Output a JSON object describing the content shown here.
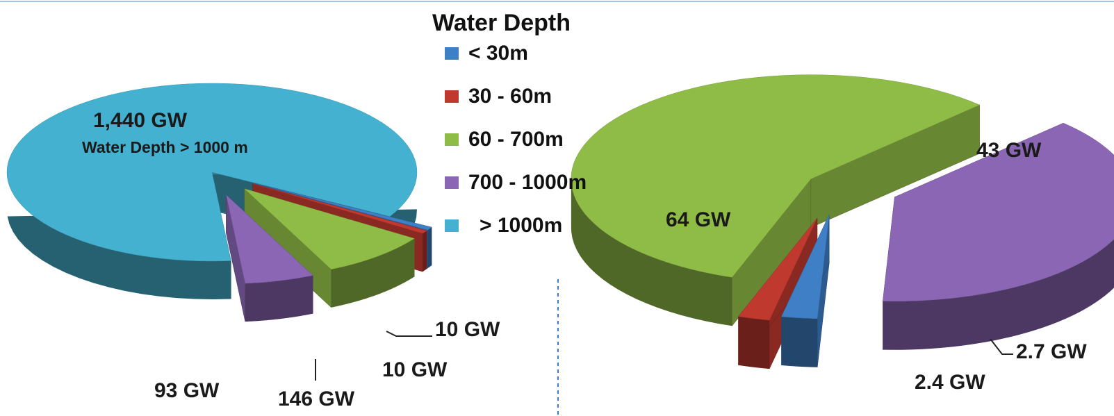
{
  "legend": {
    "title": "Water Depth",
    "items": [
      {
        "label": "< 30m",
        "color": "#3f7fc6"
      },
      {
        "label": "30 - 60m",
        "color": "#c0392f"
      },
      {
        "label": "60 - 700m",
        "color": "#8fbc46"
      },
      {
        "label": "700 - 1000m",
        "color": "#8a66b4"
      },
      {
        "label": "> 1000m",
        "color": "#45b1d0"
      }
    ]
  },
  "chart_data": [
    {
      "type": "pie",
      "title": "",
      "categories": [
        "< 30m",
        "30 - 60m",
        "60 - 700m",
        "700 - 1000m",
        "> 1000m"
      ],
      "values": [
        10,
        10,
        146,
        93,
        1440
      ],
      "unit": "GW",
      "data_labels": [
        "10 GW",
        "10 GW",
        "146 GW",
        "93 GW",
        "1,440 GW"
      ],
      "annotation": "Water Depth > 1000 m"
    },
    {
      "type": "pie",
      "title": "",
      "categories": [
        "< 30m",
        "30 - 60m",
        "60 - 700m",
        "700 - 1000m"
      ],
      "values": [
        2.7,
        2.4,
        64,
        43
      ],
      "unit": "GW",
      "data_labels": [
        "2.7 GW",
        "2.4 GW",
        "64 GW",
        "43 GW"
      ]
    }
  ]
}
